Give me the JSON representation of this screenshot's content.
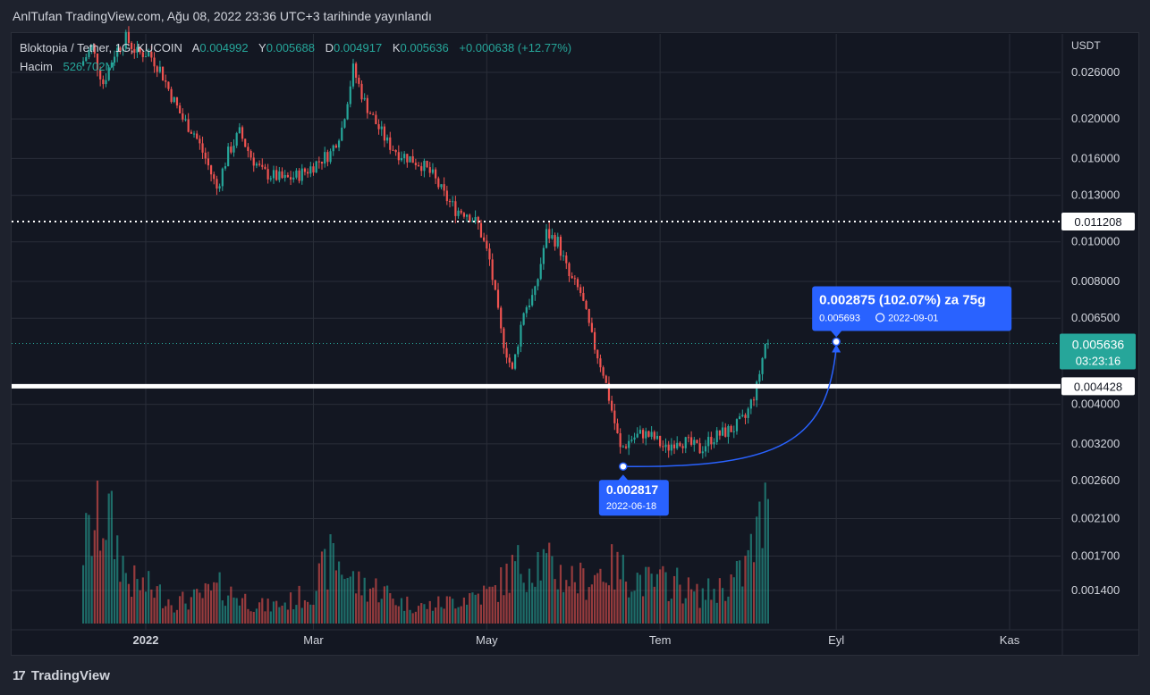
{
  "header": {
    "publish_line": "AnlTufan TradingView.com, Ağu 08, 2022 23:36 UTC+3 tarihinde yayınlandı"
  },
  "legend": {
    "symbol": "Bloktopia / Tether, 1G, KUCOIN",
    "open_label": "A",
    "open_value": "0.004992",
    "high_label": "Y",
    "high_value": "0.005688",
    "low_label": "D",
    "low_value": "0.004917",
    "close_label": "K",
    "close_value": "0.005636",
    "change": "+0.000638 (+12.77%)",
    "volume_label": "Hacim",
    "volume_value": "526.702M"
  },
  "footer": {
    "brand": "TradingView",
    "brand_mark": "17"
  },
  "chart_data": {
    "type": "candlestick",
    "symbol": "Bloktopia / Tether, 1G, KUCOIN",
    "currency": "USDT",
    "y_scale": "log",
    "y_ticks": [
      "0.026000",
      "0.020000",
      "0.016000",
      "0.013000",
      "0.010000",
      "0.008000",
      "0.006500",
      "0.004000",
      "0.003200",
      "0.002600",
      "0.002100",
      "0.001700",
      "0.001400"
    ],
    "x_ticks": [
      "2022",
      "Mar",
      "May",
      "Tem",
      "Eyl",
      "Kas"
    ],
    "x_tick_dates": [
      "2022-01-01",
      "2022-03-01",
      "2022-05-01",
      "2022-07-01",
      "2022-09-01",
      "2022-11-01"
    ],
    "last_price": "0.005636",
    "countdown": "03:23:16",
    "horizontal_lines": [
      {
        "price": "0.011208",
        "style": "dotted",
        "color": "#ffffff"
      },
      {
        "price": "0.004428",
        "style": "solid",
        "color": "#ffffff"
      }
    ],
    "low_marker": {
      "price": "0.002817",
      "date": "2022-06-18"
    },
    "target": {
      "headline": "0.002875 (102.07%) za 75g",
      "price": "0.005693",
      "date": "2022-09-01"
    },
    "price_path": [
      [
        "2021-12-10",
        0.027
      ],
      [
        "2021-12-14",
        0.03
      ],
      [
        "2021-12-18",
        0.0245
      ],
      [
        "2021-12-22",
        0.029
      ],
      [
        "2021-12-26",
        0.0315
      ],
      [
        "2021-12-30",
        0.029
      ],
      [
        "2022-01-03",
        0.029
      ],
      [
        "2022-01-07",
        0.0265
      ],
      [
        "2022-01-11",
        0.0228
      ],
      [
        "2022-01-15",
        0.02
      ],
      [
        "2022-01-19",
        0.0185
      ],
      [
        "2022-01-23",
        0.016
      ],
      [
        "2022-01-27",
        0.0135
      ],
      [
        "2022-01-31",
        0.0165
      ],
      [
        "2022-02-04",
        0.0185
      ],
      [
        "2022-02-08",
        0.0162
      ],
      [
        "2022-02-12",
        0.0148
      ],
      [
        "2022-02-16",
        0.0145
      ],
      [
        "2022-02-20",
        0.0142
      ],
      [
        "2022-02-24",
        0.0145
      ],
      [
        "2022-02-28",
        0.015
      ],
      [
        "2022-03-04",
        0.0158
      ],
      [
        "2022-03-08",
        0.0165
      ],
      [
        "2022-03-12",
        0.019
      ],
      [
        "2022-03-16",
        0.0265
      ],
      [
        "2022-03-20",
        0.022
      ],
      [
        "2022-03-24",
        0.0195
      ],
      [
        "2022-03-28",
        0.0175
      ],
      [
        "2022-04-01",
        0.0165
      ],
      [
        "2022-04-05",
        0.016
      ],
      [
        "2022-04-09",
        0.0155
      ],
      [
        "2022-04-13",
        0.0145
      ],
      [
        "2022-04-17",
        0.013
      ],
      [
        "2022-04-21",
        0.012
      ],
      [
        "2022-04-25",
        0.0118
      ],
      [
        "2022-04-29",
        0.011
      ],
      [
        "2022-05-03",
        0.009
      ],
      [
        "2022-05-07",
        0.006
      ],
      [
        "2022-05-11",
        0.0048
      ],
      [
        "2022-05-15",
        0.0068
      ],
      [
        "2022-05-19",
        0.0075
      ],
      [
        "2022-05-23",
        0.0105
      ],
      [
        "2022-05-27",
        0.01
      ],
      [
        "2022-05-31",
        0.0082
      ],
      [
        "2022-06-04",
        0.0075
      ],
      [
        "2022-06-08",
        0.0058
      ],
      [
        "2022-06-12",
        0.0048
      ],
      [
        "2022-06-16",
        0.0036
      ],
      [
        "2022-06-18",
        0.0031
      ],
      [
        "2022-06-22",
        0.0033
      ],
      [
        "2022-06-26",
        0.0034
      ],
      [
        "2022-06-30",
        0.0033
      ],
      [
        "2022-07-04",
        0.0031
      ],
      [
        "2022-07-08",
        0.0033
      ],
      [
        "2022-07-12",
        0.0032
      ],
      [
        "2022-07-16",
        0.0031
      ],
      [
        "2022-07-20",
        0.0033
      ],
      [
        "2022-07-24",
        0.0034
      ],
      [
        "2022-07-28",
        0.0035
      ],
      [
        "2022-08-01",
        0.0037
      ],
      [
        "2022-08-05",
        0.0044
      ],
      [
        "2022-08-08",
        0.005636
      ]
    ],
    "volume_path": [
      [
        "2021-12-10",
        0.55
      ],
      [
        "2021-12-18",
        0.8
      ],
      [
        "2021-12-26",
        0.3
      ],
      [
        "2022-01-03",
        0.25
      ],
      [
        "2022-01-11",
        0.15
      ],
      [
        "2022-01-19",
        0.18
      ],
      [
        "2022-01-27",
        0.25
      ],
      [
        "2022-02-04",
        0.18
      ],
      [
        "2022-02-12",
        0.12
      ],
      [
        "2022-02-20",
        0.15
      ],
      [
        "2022-02-28",
        0.22
      ],
      [
        "2022-03-08",
        0.48
      ],
      [
        "2022-03-16",
        0.28
      ],
      [
        "2022-03-24",
        0.25
      ],
      [
        "2022-04-01",
        0.15
      ],
      [
        "2022-04-09",
        0.12
      ],
      [
        "2022-04-17",
        0.15
      ],
      [
        "2022-04-25",
        0.2
      ],
      [
        "2022-05-03",
        0.22
      ],
      [
        "2022-05-11",
        0.4
      ],
      [
        "2022-05-19",
        0.45
      ],
      [
        "2022-05-27",
        0.35
      ],
      [
        "2022-06-04",
        0.3
      ],
      [
        "2022-06-12",
        0.4
      ],
      [
        "2022-06-20",
        0.35
      ],
      [
        "2022-06-28",
        0.28
      ],
      [
        "2022-07-06",
        0.3
      ],
      [
        "2022-07-14",
        0.2
      ],
      [
        "2022-07-22",
        0.25
      ],
      [
        "2022-07-30",
        0.35
      ],
      [
        "2022-08-08",
        0.82
      ]
    ]
  },
  "colors": {
    "up": "#26a69a",
    "down": "#ef5350",
    "background": "#131722",
    "frame": "#1e222d",
    "grid": "#2a2e39",
    "text": "#d1d4dc",
    "marker": "#2962ff",
    "last_price_bg": "#26a69a"
  }
}
